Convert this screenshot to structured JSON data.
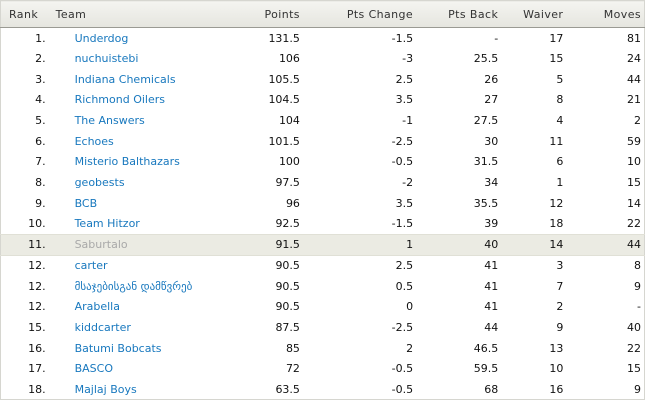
{
  "colors": {
    "link_blue": "#1878be",
    "positive_green": "#0b8a0b",
    "negative_red": "#e00000",
    "highlight_row_bg": "#ebebe3",
    "muted_team_gray": "#a9a9a9",
    "header_border": "#9a9a93"
  },
  "table": {
    "columns": [
      {
        "label": "Rank",
        "align": "left",
        "key": "rank"
      },
      {
        "label": "Team",
        "align": "left",
        "key": "team"
      },
      {
        "label": "Points",
        "align": "right",
        "key": "points"
      },
      {
        "label": "Pts Change",
        "align": "right",
        "key": "pts_change"
      },
      {
        "label": "Pts Back",
        "align": "right",
        "key": "pts_back"
      },
      {
        "label": "Waiver",
        "align": "right",
        "key": "waiver"
      },
      {
        "label": "Moves",
        "align": "right",
        "key": "moves"
      }
    ],
    "rows": [
      {
        "rank": "1.",
        "team": "Underdog",
        "points": "131.5",
        "pts_change": "-1.5",
        "pts_back": "-",
        "waiver": "17",
        "moves": "81",
        "highlighted": false
      },
      {
        "rank": "2.",
        "team": "nuchuistebi",
        "points": "106",
        "pts_change": "-3",
        "pts_back": "25.5",
        "waiver": "15",
        "moves": "24",
        "highlighted": false
      },
      {
        "rank": "3.",
        "team": "Indiana Chemicals",
        "points": "105.5",
        "pts_change": "2.5",
        "pts_back": "26",
        "waiver": "5",
        "moves": "44",
        "highlighted": false
      },
      {
        "rank": "4.",
        "team": "Richmond Oilers",
        "points": "104.5",
        "pts_change": "3.5",
        "pts_back": "27",
        "waiver": "8",
        "moves": "21",
        "highlighted": false
      },
      {
        "rank": "5.",
        "team": "The Answers",
        "points": "104",
        "pts_change": "-1",
        "pts_back": "27.5",
        "waiver": "4",
        "moves": "2",
        "highlighted": false
      },
      {
        "rank": "6.",
        "team": "Echoes",
        "points": "101.5",
        "pts_change": "-2.5",
        "pts_back": "30",
        "waiver": "11",
        "moves": "59",
        "highlighted": false
      },
      {
        "rank": "7.",
        "team": "Misterio Balthazars",
        "points": "100",
        "pts_change": "-0.5",
        "pts_back": "31.5",
        "waiver": "6",
        "moves": "10",
        "highlighted": false
      },
      {
        "rank": "8.",
        "team": "geobests",
        "points": "97.5",
        "pts_change": "-2",
        "pts_back": "34",
        "waiver": "1",
        "moves": "15",
        "highlighted": false
      },
      {
        "rank": "9.",
        "team": "BCB",
        "points": "96",
        "pts_change": "3.5",
        "pts_back": "35.5",
        "waiver": "12",
        "moves": "14",
        "highlighted": false
      },
      {
        "rank": "10.",
        "team": "Team Hitzor",
        "points": "92.5",
        "pts_change": "-1.5",
        "pts_back": "39",
        "waiver": "18",
        "moves": "22",
        "highlighted": false
      },
      {
        "rank": "11.",
        "team": "Saburtalo",
        "points": "91.5",
        "pts_change": "1",
        "pts_back": "40",
        "waiver": "14",
        "moves": "44",
        "highlighted": true
      },
      {
        "rank": "12.",
        "team": "carter",
        "points": "90.5",
        "pts_change": "2.5",
        "pts_back": "41",
        "waiver": "3",
        "moves": "8",
        "highlighted": false
      },
      {
        "rank": "12.",
        "team": "მსაჯებისგან დამწვრებ",
        "points": "90.5",
        "pts_change": "0.5",
        "pts_back": "41",
        "waiver": "7",
        "moves": "9",
        "highlighted": false
      },
      {
        "rank": "12.",
        "team": "Arabella",
        "points": "90.5",
        "pts_change": "0",
        "pts_back": "41",
        "waiver": "2",
        "moves": "-",
        "highlighted": false
      },
      {
        "rank": "15.",
        "team": "kiddcarter",
        "points": "87.5",
        "pts_change": "-2.5",
        "pts_back": "44",
        "waiver": "9",
        "moves": "40",
        "highlighted": false
      },
      {
        "rank": "16.",
        "team": "Batumi Bobcats",
        "points": "85",
        "pts_change": "2",
        "pts_back": "46.5",
        "waiver": "13",
        "moves": "22",
        "highlighted": false
      },
      {
        "rank": "17.",
        "team": "BASCO",
        "points": "72",
        "pts_change": "-0.5",
        "pts_back": "59.5",
        "waiver": "10",
        "moves": "15",
        "highlighted": false
      },
      {
        "rank": "18.",
        "team": "Majlaj Boys",
        "points": "63.5",
        "pts_change": "-0.5",
        "pts_back": "68",
        "waiver": "16",
        "moves": "9",
        "highlighted": false
      }
    ]
  }
}
